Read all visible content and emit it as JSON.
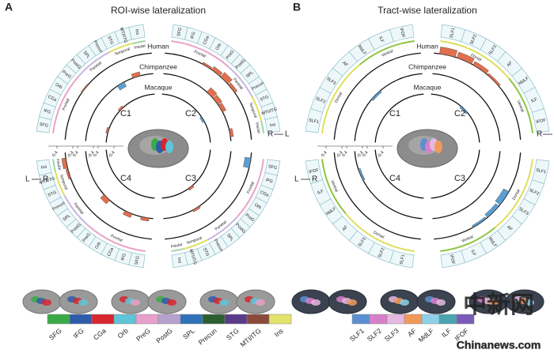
{
  "panels": [
    {
      "letter": "A",
      "title": "ROI-wise lateralization",
      "species": [
        "Human",
        "Chimpanzee",
        "Macaque"
      ],
      "clusters": [
        "C1",
        "C2",
        "C3",
        "C4"
      ],
      "lr": [
        "L",
        "R"
      ],
      "ticks": [
        -0.4,
        0.4
      ],
      "bar_colors": {
        "positive": "#e2704f",
        "negative": "#5b9fd3"
      },
      "groups": [
        {
          "name": "Frontal",
          "color": "#e9a3c9",
          "labels": [
            "SFG",
            "IFG",
            "CGa",
            "Orb",
            "PreG"
          ]
        },
        {
          "name": "Parietal",
          "color": "#c9b3df",
          "labels": [
            "PostG",
            "SPL",
            "Precun"
          ]
        },
        {
          "name": "Temporal",
          "color": "#dede5a",
          "labels": [
            "STG",
            "MTI/ITG"
          ]
        },
        {
          "name": "Insular",
          "color": "#9fd3a8",
          "labels": [
            "Ins"
          ]
        }
      ],
      "values": [
        [
          [
            null,
            null,
            null,
            null,
            0.05,
            null,
            null,
            null,
            null,
            null,
            null
          ],
          [
            null,
            null,
            null,
            0.1,
            0.2,
            0.3,
            0.15,
            null,
            null,
            null,
            null
          ],
          [
            -0.3,
            null,
            null,
            null,
            null,
            null,
            null,
            null,
            null,
            null,
            null
          ],
          [
            null,
            null,
            null,
            null,
            null,
            null,
            null,
            null,
            null,
            0.1,
            0.2
          ]
        ],
        [
          [
            null,
            null,
            null,
            null,
            null,
            null,
            null,
            -0.25,
            null,
            0.2,
            null
          ],
          [
            null,
            null,
            null,
            null,
            null,
            0.3,
            0.25,
            0.2,
            null,
            null,
            0.15
          ],
          [
            null,
            null,
            null,
            null,
            null,
            null,
            null,
            0.1,
            null,
            null,
            null
          ],
          [
            0.15,
            null,
            0.2,
            null,
            null,
            0.25,
            null,
            null,
            null,
            null,
            null
          ]
        ],
        [
          [
            null,
            0.1,
            null,
            null,
            null,
            0.1,
            null,
            null,
            null,
            null,
            null
          ],
          [
            null,
            null,
            null,
            null,
            null,
            null,
            null,
            -0.1,
            null,
            null,
            null
          ],
          [
            null,
            null,
            null,
            null,
            null,
            null,
            0.1,
            null,
            null,
            null,
            null
          ],
          [
            null,
            null,
            null,
            null,
            null,
            null,
            null,
            null,
            null,
            null,
            null
          ]
        ]
      ],
      "legend": [
        {
          "label": "SFG",
          "color": "#3aaa48"
        },
        {
          "label": "IFG",
          "color": "#2e5caa"
        },
        {
          "label": "CGa",
          "color": "#d8262f"
        },
        {
          "label": "Orb",
          "color": "#5ec5d8"
        },
        {
          "label": "PreG",
          "color": "#e7a0c9"
        },
        {
          "label": "PostG",
          "color": "#b6a2cf"
        },
        {
          "label": "SPL",
          "color": "#2f71b8"
        },
        {
          "label": "Precun",
          "color": "#2c5e2f"
        },
        {
          "label": "STG",
          "color": "#5a3b8a"
        },
        {
          "label": "MTI/ITG",
          "color": "#8b4a3a"
        },
        {
          "label": "Ins",
          "color": "#e2e36a"
        }
      ]
    },
    {
      "letter": "B",
      "title": "Tract-wise lateralization",
      "species": [
        "Human",
        "Chimpanzee",
        "Macaque"
      ],
      "clusters": [
        "C1",
        "C2",
        "C3",
        "C4"
      ],
      "lr": [
        "L",
        "R"
      ],
      "ticks": [
        -0.4,
        0.4
      ],
      "bar_colors": {
        "positive": "#e2704f",
        "negative": "#5b9fd3"
      },
      "groups": [
        {
          "name": "Dorsal",
          "color": "#dede5a",
          "labels": [
            "SLF1",
            "SLF2",
            "SLF3",
            "AF"
          ]
        },
        {
          "name": "Ventral",
          "color": "#8cc63f",
          "labels": [
            "MdLF",
            "ILF",
            "IFOF"
          ]
        }
      ],
      "values": [
        [
          [
            null,
            null,
            null,
            null,
            null,
            null,
            null
          ],
          [
            0.35,
            0.3,
            0.2,
            0.1,
            null,
            null,
            null
          ],
          [
            null,
            null,
            -0.3,
            -0.2,
            -0.1,
            null,
            null
          ],
          [
            null,
            null,
            null,
            null,
            null,
            null,
            null
          ]
        ],
        [
          [
            null,
            null,
            null,
            -0.1,
            null,
            null,
            null
          ],
          [
            null,
            null,
            null,
            null,
            null,
            null,
            null
          ],
          [
            null,
            null,
            null,
            null,
            null,
            null,
            null
          ],
          [
            null,
            null,
            null,
            null,
            null,
            -0.1,
            null
          ]
        ],
        [
          [
            null,
            null,
            null,
            null,
            null,
            null,
            null
          ],
          [
            null,
            null,
            null,
            -0.1,
            null,
            null,
            null
          ],
          [
            null,
            null,
            null,
            null,
            null,
            null,
            null
          ],
          [
            null,
            null,
            null,
            null,
            null,
            null,
            null
          ]
        ]
      ],
      "legend": [
        {
          "label": "SLF1",
          "color": "#5b8fd0"
        },
        {
          "label": "SLF2",
          "color": "#d87fc9"
        },
        {
          "label": "SLF3",
          "color": "#e6b8e0"
        },
        {
          "label": "AF",
          "color": "#f09a5a"
        },
        {
          "label": "MdLF",
          "color": "#8fd0e8"
        },
        {
          "label": "ILF",
          "color": "#4aa5b0"
        },
        {
          "label": "IFOF",
          "color": "#7a5cb8"
        }
      ]
    }
  ],
  "watermark": {
    "cn": "中新网",
    "en": "Chinanews.com"
  }
}
